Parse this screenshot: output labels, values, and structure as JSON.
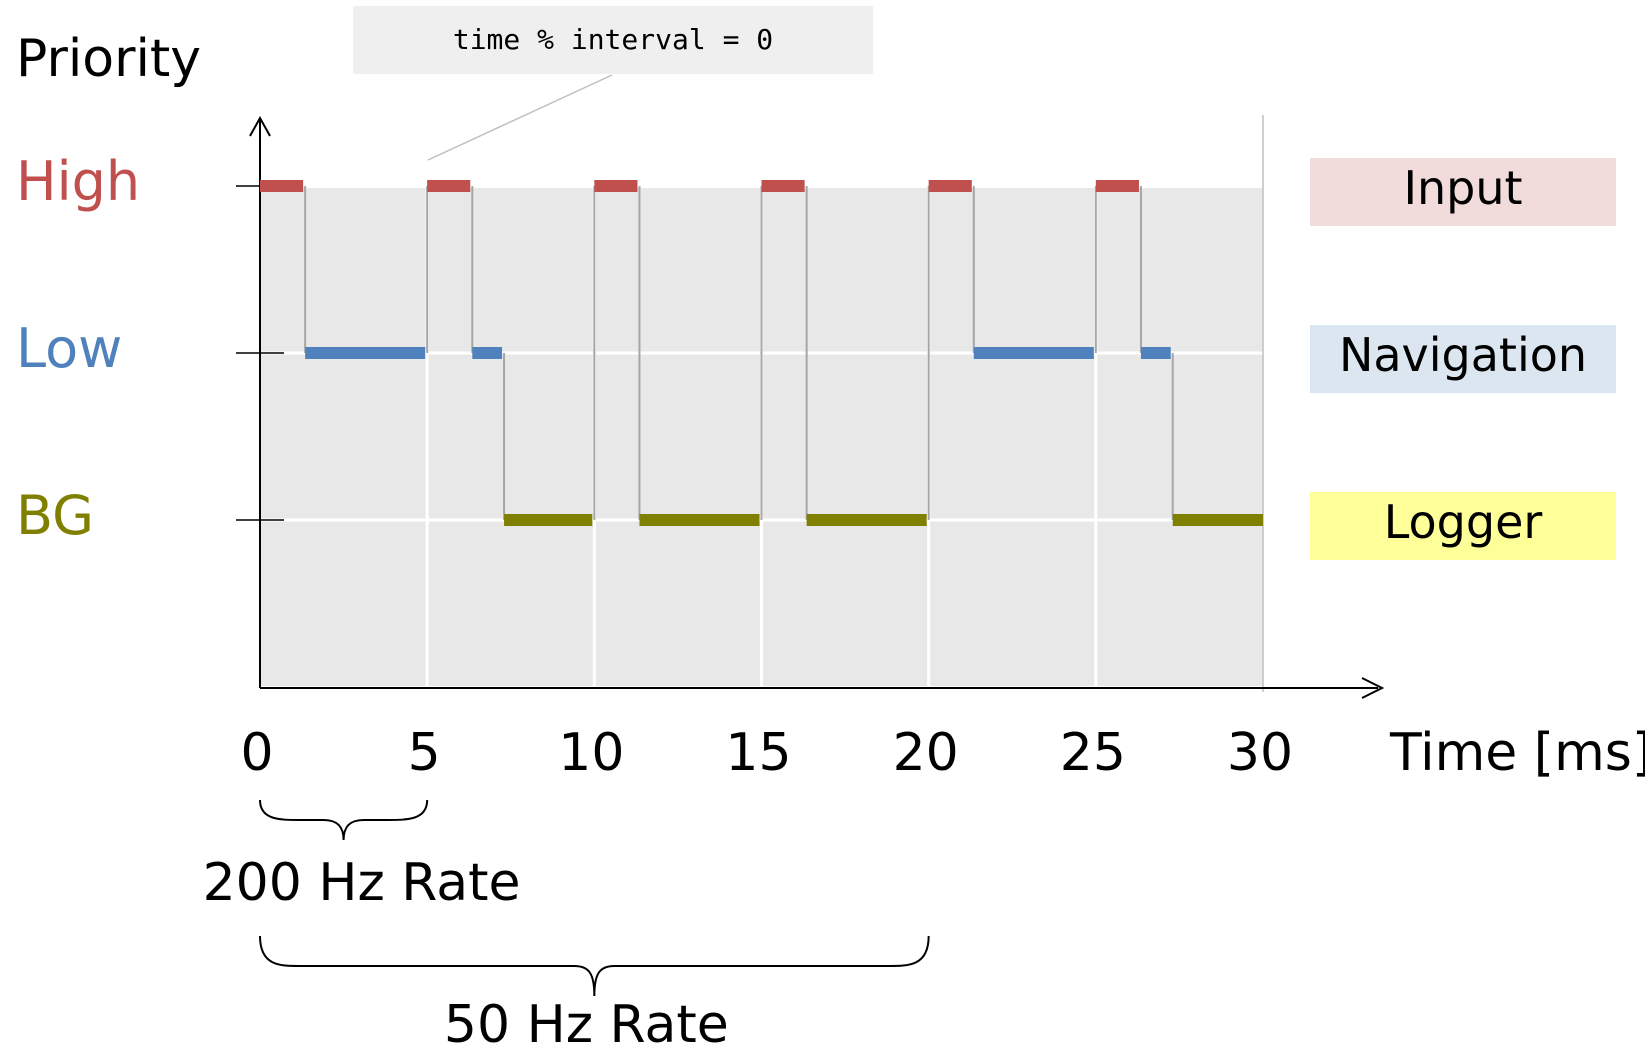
{
  "diagram": {
    "y_axis_title": "Priority",
    "x_axis_title": "Time [ms]",
    "annotation": "time % interval = 0",
    "priority_levels": [
      {
        "id": "high",
        "label": "High",
        "color": "#c0504d"
      },
      {
        "id": "low",
        "label": "Low",
        "color": "#4f81bd"
      },
      {
        "id": "bg",
        "label": "BG",
        "color": "#7f7f00"
      }
    ],
    "tasks": [
      {
        "id": "input",
        "label": "Input",
        "priority": "high",
        "box_color": "#f2dcdb",
        "bar_color": "#c0504d"
      },
      {
        "id": "navigation",
        "label": "Navigation",
        "priority": "low",
        "box_color": "#dce6f1",
        "bar_color": "#4f81bd"
      },
      {
        "id": "logger",
        "label": "Logger",
        "priority": "bg",
        "box_color": "#ffff99",
        "bar_color": "#7f7f00"
      }
    ],
    "x_ticks": [
      "0",
      "5",
      "10",
      "15",
      "20",
      "25",
      "30"
    ],
    "x_range": [
      0,
      30
    ],
    "execution": [
      {
        "task": "input",
        "start": 0.0,
        "end": 1.35
      },
      {
        "task": "navigation",
        "start": 1.35,
        "end": 5.0
      },
      {
        "task": "input",
        "start": 5.0,
        "end": 6.35
      },
      {
        "task": "navigation",
        "start": 6.35,
        "end": 7.3
      },
      {
        "task": "logger",
        "start": 7.3,
        "end": 10.0
      },
      {
        "task": "input",
        "start": 10.0,
        "end": 11.35
      },
      {
        "task": "logger",
        "start": 11.35,
        "end": 15.0
      },
      {
        "task": "input",
        "start": 15.0,
        "end": 16.35
      },
      {
        "task": "logger",
        "start": 16.35,
        "end": 20.0
      },
      {
        "task": "input",
        "start": 20.0,
        "end": 21.35
      },
      {
        "task": "navigation",
        "start": 21.35,
        "end": 25.0
      },
      {
        "task": "input",
        "start": 25.0,
        "end": 26.35
      },
      {
        "task": "navigation",
        "start": 26.35,
        "end": 27.3
      },
      {
        "task": "logger",
        "start": 27.3,
        "end": 30.0
      }
    ],
    "rates": [
      {
        "label": "200 Hz Rate",
        "start": 0,
        "end": 5
      },
      {
        "label": "50 Hz Rate",
        "start": 0,
        "end": 20
      }
    ]
  }
}
